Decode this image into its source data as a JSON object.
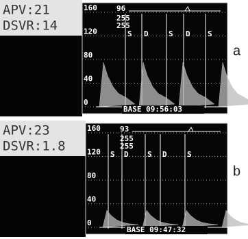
{
  "panels": [
    {
      "label": "a",
      "apv": "APV:21",
      "dsvr": "DSVR:14",
      "scale": [
        "160",
        "120",
        "80",
        "40",
        "0"
      ],
      "readout": "96",
      "gains": [
        "255",
        "255"
      ],
      "markers": [
        "S",
        "D",
        "S",
        "D",
        "S"
      ],
      "footer": "BASE 09:56:03"
    },
    {
      "label": "b",
      "apv": "APV:23",
      "dsvr": "DSVR:1.8",
      "scale": [
        "160",
        "120",
        "80",
        "40",
        "0"
      ],
      "readout": "93",
      "gains": [
        "255",
        "255"
      ],
      "markers": [
        "S",
        "D",
        "S",
        "D",
        "S"
      ],
      "footer": "BASE 09:47:32"
    }
  ]
}
